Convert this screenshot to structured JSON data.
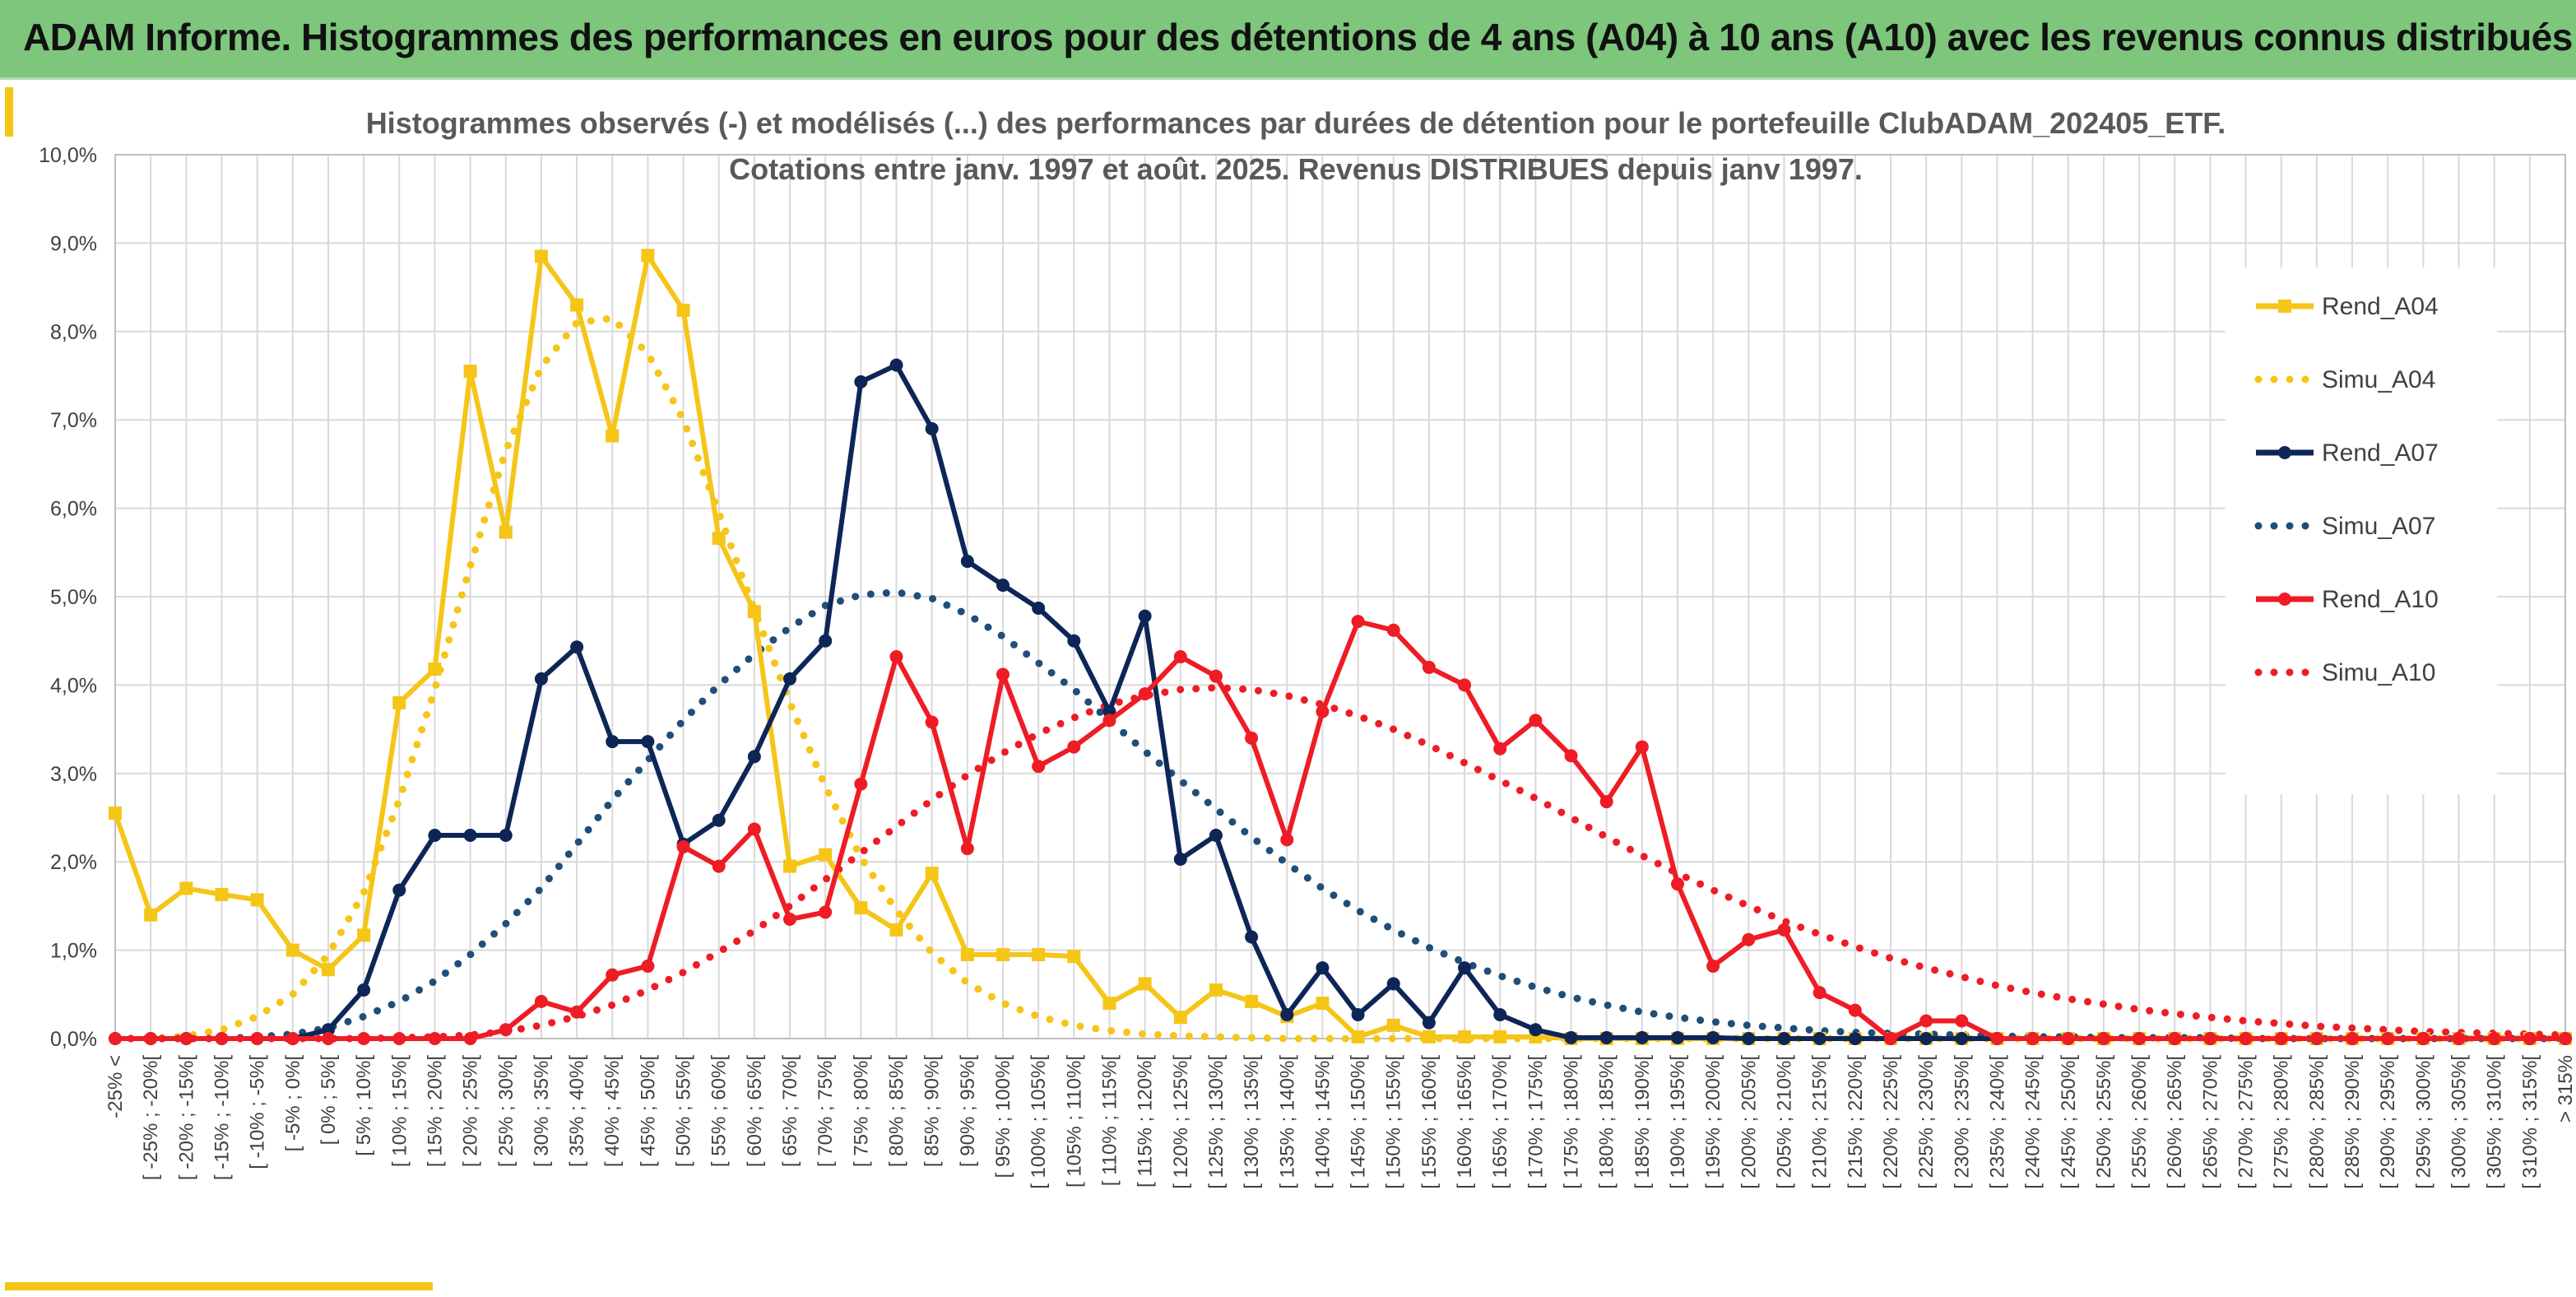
{
  "header": {
    "title": "ADAM Informe. Histogrammes des performances en euros pour des détentions de 4 ans (A04) à 10 ans (A10) avec les revenus connus distribués"
  },
  "chart_data": {
    "type": "line",
    "title": "Histogrammes observés (-) et modélisés (...) des performances par durées de détention pour le portefeuille ClubADAM_202405_ETF.",
    "subtitle": "Cotations entre janv. 1997 et août. 2025. Revenus DISTRIBUES depuis janv 1997.",
    "xlabel": "",
    "ylabel": "",
    "ylim": [
      0,
      10
    ],
    "y_ticks": [
      "0,0%",
      "1,0%",
      "2,0%",
      "3,0%",
      "4,0%",
      "5,0%",
      "6,0%",
      "7,0%",
      "8,0%",
      "9,0%",
      "10,0%"
    ],
    "grid": true,
    "legend_position": "right",
    "categories": [
      "-25% <",
      "[ -25% ; -20%[",
      "[ -20% ; -15%[",
      "[ -15% ; -10%[",
      "[ -10% ; -5%[",
      "[ -5% ; 0%[",
      "[ 0% ; 5%[",
      "[ 5% ; 10%[",
      "[ 10% ; 15%[",
      "[ 15% ; 20%[",
      "[ 20% ; 25%[",
      "[ 25% ; 30%[",
      "[ 30% ; 35%[",
      "[ 35% ; 40%[",
      "[ 40% ; 45%[",
      "[ 45% ; 50%[",
      "[ 50% ; 55%[",
      "[ 55% ; 60%[",
      "[ 60% ; 65%[",
      "[ 65% ; 70%[",
      "[ 70% ; 75%[",
      "[ 75% ; 80%[",
      "[ 80% ; 85%[",
      "[ 85% ; 90%[",
      "[ 90% ; 95%[",
      "[ 95% ; 100%[",
      "[ 100% ; 105%[",
      "[ 105% ; 110%[",
      "[ 110% ; 115%[",
      "[ 115% ; 120%[",
      "[ 120% ; 125%[",
      "[ 125% ; 130%[",
      "[ 130% ; 135%[",
      "[ 135% ; 140%[",
      "[ 140% ; 145%[",
      "[ 145% ; 150%[",
      "[ 150% ; 155%[",
      "[ 155% ; 160%[",
      "[ 160% ; 165%[",
      "[ 165% ; 170%[",
      "[ 170% ; 175%[",
      "[ 175% ; 180%[",
      "[ 180% ; 185%[",
      "[ 185% ; 190%[",
      "[ 190% ; 195%[",
      "[ 195% ; 200%[",
      "[ 200% ; 205%[",
      "[ 205% ; 210%[",
      "[ 210% ; 215%[",
      "[ 215% ; 220%[",
      "[ 220% ; 225%[",
      "[ 225% ; 230%[",
      "[ 230% ; 235%[",
      "[ 235% ; 240%[",
      "[ 240% ; 245%[",
      "[ 245% ; 250%[",
      "[ 250% ; 255%[",
      "[ 255% ; 260%[",
      "[ 260% ; 265%[",
      "[ 265% ; 270%[",
      "[ 270% ; 275%[",
      "[ 275% ; 280%[",
      "[ 280% ; 285%[",
      "[ 285% ; 290%[",
      "[ 290% ; 295%[",
      "[ 295% ; 300%[",
      "[ 300% ; 305%[",
      "[ 305% ; 310%[",
      "[ 310% ; 315%[",
      "> 315%"
    ],
    "series": [
      {
        "name": "Rend_A04",
        "color": "#f5c518",
        "style": "solid",
        "marker": "square",
        "values": [
          2.55,
          1.4,
          1.7,
          1.63,
          1.57,
          1.0,
          0.78,
          1.17,
          3.8,
          4.18,
          7.55,
          5.73,
          8.85,
          8.3,
          6.82,
          8.86,
          8.24,
          5.66,
          4.83,
          1.95,
          2.08,
          1.48,
          1.23,
          1.87,
          0.95,
          0.95,
          0.95,
          0.93,
          0.4,
          0.62,
          0.24,
          0.55,
          0.42,
          0.25,
          0.4,
          0.02,
          0.15,
          0.02,
          0.02,
          0.02,
          0.02,
          0,
          0,
          0,
          0,
          0,
          0,
          0,
          0,
          0,
          0,
          0,
          0,
          0,
          0,
          0,
          0,
          0,
          0,
          0,
          0,
          0,
          0,
          0,
          0,
          0,
          0,
          0,
          0,
          0
        ]
      },
      {
        "name": "Simu_A04",
        "color": "#f5c518",
        "style": "dotted",
        "values": [
          0.0,
          0.0,
          0.03,
          0.1,
          0.25,
          0.5,
          0.95,
          1.65,
          2.7,
          3.95,
          5.35,
          6.65,
          7.6,
          8.1,
          8.15,
          7.75,
          7.0,
          5.95,
          4.85,
          3.8,
          2.85,
          2.05,
          1.45,
          0.97,
          0.63,
          0.4,
          0.25,
          0.15,
          0.09,
          0.05,
          0.03,
          0.02,
          0.01,
          0,
          0,
          0,
          0,
          0,
          0,
          0,
          0,
          0,
          0,
          0,
          0,
          0,
          0,
          0,
          0,
          0,
          0,
          0,
          0,
          0,
          0,
          0,
          0,
          0,
          0,
          0,
          0,
          0,
          0,
          0,
          0,
          0,
          0,
          0,
          0,
          0
        ]
      },
      {
        "name": "Rend_A07",
        "color": "#0d2657",
        "style": "solid",
        "marker": "circle",
        "values": [
          0,
          0,
          0,
          0,
          0,
          0,
          0.1,
          0.55,
          1.68,
          2.3,
          2.3,
          2.3,
          4.07,
          4.43,
          3.36,
          3.36,
          2.2,
          2.47,
          3.19,
          4.07,
          4.5,
          7.43,
          7.62,
          6.9,
          5.4,
          5.13,
          4.87,
          4.5,
          3.7,
          4.78,
          2.03,
          2.3,
          1.15,
          0.27,
          0.8,
          0.27,
          0.62,
          0.18,
          0.8,
          0.27,
          0.1,
          0.01,
          0.01,
          0.01,
          0.01,
          0.01,
          0,
          0,
          0,
          0,
          0,
          0,
          0,
          0,
          0,
          0,
          0,
          0,
          0,
          0,
          0,
          0,
          0,
          0,
          0,
          0,
          0,
          0,
          0,
          0
        ]
      },
      {
        "name": "Simu_A07",
        "color": "#1f4e79",
        "style": "dotted",
        "values": [
          0,
          0,
          0,
          0,
          0.02,
          0.05,
          0.12,
          0.25,
          0.42,
          0.65,
          0.95,
          1.3,
          1.7,
          2.2,
          2.7,
          3.15,
          3.6,
          4.0,
          4.35,
          4.65,
          4.9,
          5.02,
          5.05,
          4.98,
          4.8,
          4.55,
          4.25,
          3.95,
          3.6,
          3.25,
          2.92,
          2.6,
          2.28,
          1.98,
          1.7,
          1.45,
          1.23,
          1.03,
          0.86,
          0.71,
          0.58,
          0.47,
          0.38,
          0.3,
          0.24,
          0.19,
          0.15,
          0.12,
          0.09,
          0.07,
          0.06,
          0.05,
          0.04,
          0.03,
          0.02,
          0.02,
          0.01,
          0.01,
          0.01,
          0.01,
          0,
          0,
          0,
          0,
          0,
          0,
          0,
          0,
          0,
          0
        ]
      },
      {
        "name": "Rend_A10",
        "color": "#ee1c25",
        "style": "solid",
        "marker": "circle",
        "values": [
          0,
          0,
          0,
          0,
          0,
          0,
          0,
          0,
          0,
          0,
          0,
          0.1,
          0.42,
          0.3,
          0.72,
          0.82,
          2.17,
          1.95,
          2.37,
          1.35,
          1.43,
          2.88,
          4.32,
          3.58,
          2.15,
          4.12,
          3.08,
          3.3,
          3.6,
          3.9,
          4.32,
          4.1,
          3.4,
          2.25,
          3.7,
          4.72,
          4.62,
          4.2,
          4.0,
          3.28,
          3.6,
          3.2,
          2.68,
          3.3,
          1.75,
          0.82,
          1.12,
          1.23,
          0.52,
          0.32,
          0.0,
          0.2,
          0.2,
          0,
          0,
          0,
          0,
          0,
          0,
          0,
          0,
          0,
          0,
          0,
          0,
          0,
          0,
          0,
          0,
          0
        ]
      },
      {
        "name": "Simu_A10",
        "color": "#ee1c25",
        "style": "dotted",
        "values": [
          0,
          0,
          0,
          0,
          0,
          0,
          0,
          0,
          0.01,
          0.02,
          0.04,
          0.08,
          0.15,
          0.25,
          0.38,
          0.55,
          0.75,
          0.98,
          1.22,
          1.5,
          1.8,
          2.1,
          2.4,
          2.7,
          2.98,
          3.23,
          3.45,
          3.63,
          3.78,
          3.88,
          3.95,
          3.97,
          3.95,
          3.88,
          3.78,
          3.65,
          3.5,
          3.32,
          3.12,
          2.92,
          2.72,
          2.5,
          2.28,
          2.07,
          1.87,
          1.68,
          1.5,
          1.33,
          1.18,
          1.04,
          0.91,
          0.8,
          0.7,
          0.6,
          0.52,
          0.45,
          0.39,
          0.33,
          0.28,
          0.24,
          0.2,
          0.17,
          0.14,
          0.12,
          0.1,
          0.08,
          0.07,
          0.06,
          0.05,
          0.04
        ]
      }
    ]
  }
}
